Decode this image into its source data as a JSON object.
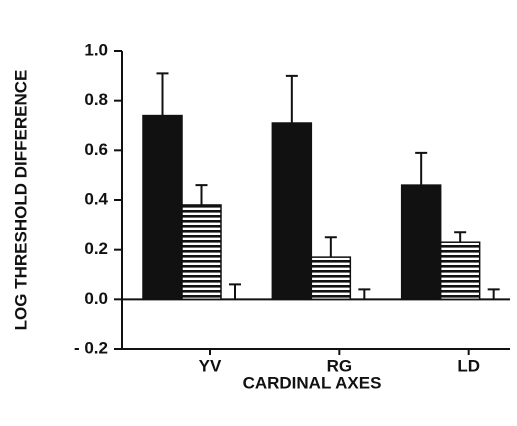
{
  "chart_data": {
    "type": "bar",
    "y_label": "LOG THRESHOLD DIFFERENCE",
    "x_label": "CARDINAL AXES",
    "categories": [
      "YV",
      "RG",
      "LD"
    ],
    "series": [
      {
        "color": "#111111",
        "fill": "solid",
        "values": [
          0.74,
          0.71,
          0.46
        ],
        "errors": [
          0.17,
          0.19,
          0.13
        ]
      },
      {
        "color": "#111111",
        "fill": "horizontal-stripes",
        "values": [
          0.38,
          0.17,
          0.23
        ],
        "errors": [
          0.08,
          0.08,
          0.04
        ]
      },
      {
        "color": "#111111",
        "fill": "solid",
        "values": [
          0,
          0,
          0
        ],
        "errors": [
          0.06,
          0.04,
          0.04
        ]
      }
    ],
    "ylim": [
      -0.2,
      1
    ],
    "yticks": [
      {
        "value": -0.2,
        "label": "- 0.2"
      },
      {
        "value": 0,
        "label": "0.0"
      },
      0.2,
      0.4,
      0.6,
      0.8,
      {
        "value": 1,
        "label": "1.0"
      }
    ],
    "zero_line": true,
    "grid": false
  }
}
